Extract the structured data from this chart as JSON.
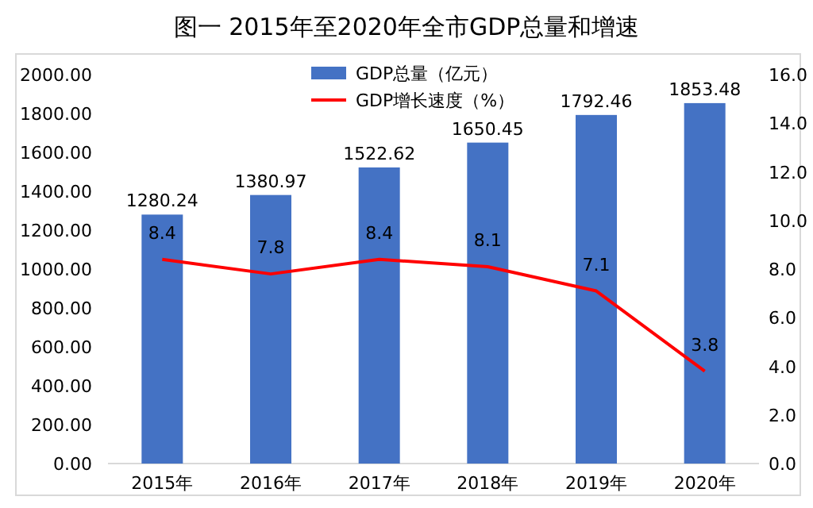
{
  "chart_data": {
    "type": "bar",
    "title": "图一 2015年至2020年全市GDP总量和增速",
    "categories": [
      "2015年",
      "2016年",
      "2017年",
      "2018年",
      "2019年",
      "2020年"
    ],
    "series": [
      {
        "name": "GDP总量（亿元）",
        "color": "#4472c4",
        "values": [
          1280.24,
          1380.97,
          1522.62,
          1650.45,
          1792.46,
          1853.48
        ]
      },
      {
        "name": "GDP增长速度（%）",
        "type": "line",
        "axis": "y2",
        "color": "#ff0000",
        "marker": "none",
        "values": [
          8.4,
          7.8,
          8.4,
          8.1,
          7.1,
          3.8
        ]
      }
    ],
    "ylim": [
      0,
      2000
    ],
    "yticks": [
      {
        "value": 0,
        "label": "0.00"
      },
      {
        "value": 200,
        "label": "200.00"
      },
      {
        "value": 400,
        "label": "400.00"
      },
      {
        "value": 600,
        "label": "600.00"
      },
      {
        "value": 800,
        "label": "800.00"
      },
      {
        "value": 1000,
        "label": "1000.00"
      },
      {
        "value": 1200,
        "label": "1200.00"
      },
      {
        "value": 1400,
        "label": "1400.00"
      },
      {
        "value": 1600,
        "label": "1600.00"
      },
      {
        "value": 1800,
        "label": "1800.00"
      },
      {
        "value": 2000,
        "label": "2000.00"
      }
    ],
    "y2lim": [
      0,
      16
    ],
    "y2ticks": [
      {
        "value": 0,
        "label": "0.0"
      },
      {
        "value": 2,
        "label": "2.0"
      },
      {
        "value": 4,
        "label": "4.0"
      },
      {
        "value": 6,
        "label": "6.0"
      },
      {
        "value": 8,
        "label": "8.0"
      },
      {
        "value": 10,
        "label": "10.0"
      },
      {
        "value": 12,
        "label": "12.0"
      },
      {
        "value": 14,
        "label": "14.0"
      },
      {
        "value": 16,
        "label": "16.0"
      }
    ],
    "data_labels": true,
    "legend": "top",
    "grid": false
  }
}
